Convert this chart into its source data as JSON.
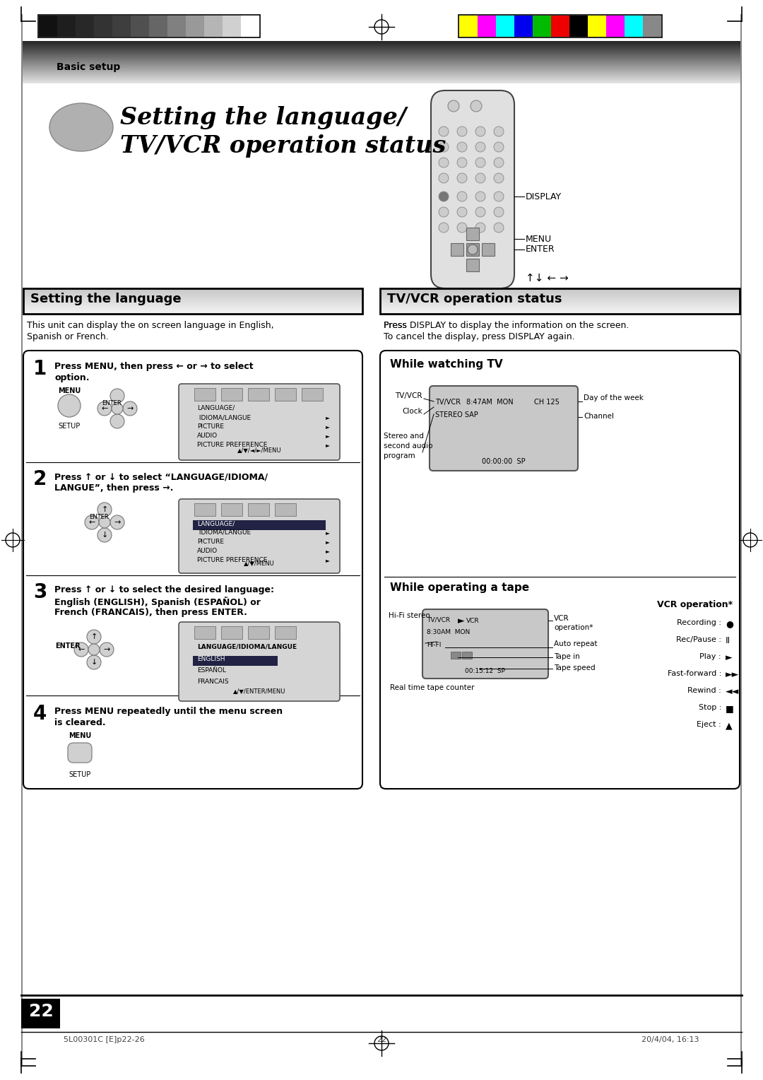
{
  "page_bg": "#ffffff",
  "header_text": "Basic setup",
  "title_line1": "Setting the language/",
  "title_line2": "TV/VCR operation status",
  "section_left_title": "Setting the language",
  "section_right_title": "TV/VCR operation status",
  "left_intro1": "This unit can display the on screen language in English,",
  "left_intro2": "Spanish or French.",
  "right_intro1": "Press DISPLAY to display the information on the screen.",
  "right_intro2": "To cancel the display, press DISPLAY again.",
  "step1_bold": "Press MENU, then press ← or → to select",
  "step1_bold2": "option.",
  "step2_bold1": "Press ↑ or ↓ to select “LANGUAGE/IDIOMA/",
  "step2_bold2": "LANGUE”, then press →.",
  "step3_bold1": "Press ↑ or ↓ to select the desired language:",
  "step3_bold2": "English (ENGLISH), Spanish (ESPAÑOL) or",
  "step3_bold3": "French (FRANCAIS), then press ENTER.",
  "step4_bold1": "Press MENU repeatedly until the menu screen",
  "step4_bold2": "is cleared.",
  "while_tv": "While watching TV",
  "while_tape": "While operating a tape",
  "vcr_op": "VCR operation*",
  "display_lbl": "DISPLAY",
  "menu_lbl": "MENU",
  "enter_lbl": "ENTER",
  "arrows_lbl": "↑↓ ← →",
  "page_number": "22",
  "footer_left": "5L00301C [E]p22-26",
  "footer_mid": "22",
  "footer_right": "20/4/04, 16:13",
  "bar_colors_left": [
    "#111111",
    "#1e1e1e",
    "#282828",
    "#333333",
    "#3e3e3e",
    "#505050",
    "#666666",
    "#808080",
    "#999999",
    "#b5b5b5",
    "#d0d0d0",
    "#ffffff"
  ],
  "bar_colors_right": [
    "#ffff00",
    "#ff00ff",
    "#00ffff",
    "#0000ee",
    "#00bb00",
    "#ee0000",
    "#000000",
    "#ffff00",
    "#ff00ff",
    "#00ffff",
    "#888888"
  ]
}
